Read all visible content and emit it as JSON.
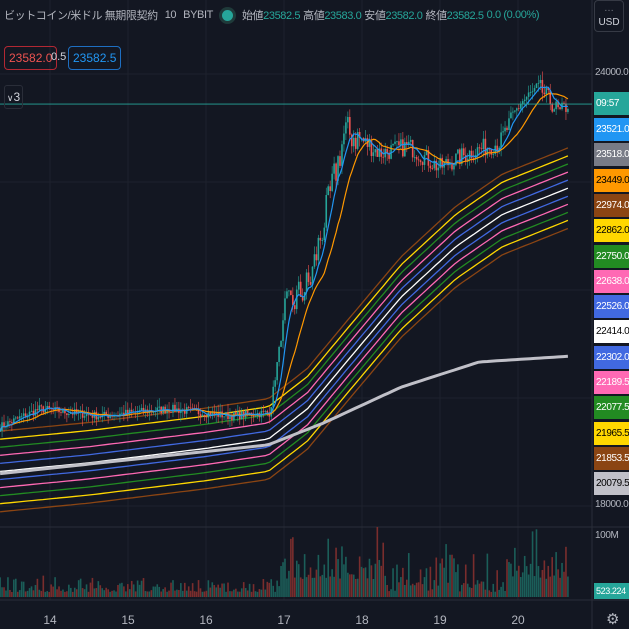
{
  "header": {
    "symbol": "ビットコイン/米ドル 無期限契約",
    "interval": "10",
    "exchange": "BYBIT",
    "ohlc": [
      {
        "k": "始値",
        "v": "23582.5"
      },
      {
        "k": "高値",
        "v": "23583.0"
      },
      {
        "k": "安値",
        "v": "23582.0"
      },
      {
        "k": "終値",
        "v": "23582.5"
      }
    ],
    "change": "0.0 (0.00%)"
  },
  "bid": "23582.0",
  "spread": "0.5",
  "ask": "23582.5",
  "indicators_toggle": "3",
  "currency": "USD",
  "axis": {
    "ticks": [
      "24000.0",
      "18000.0"
    ],
    "volume_tick": "100M",
    "volume_value": "523.224",
    "countdown": "09:57",
    "dates": [
      "14",
      "15",
      "16",
      "17",
      "18",
      "19",
      "20"
    ]
  },
  "price_labels": [
    {
      "v": "23521.0",
      "bg": "#2196f3",
      "fg": "#ffffff"
    },
    {
      "v": "23518.0",
      "bg": "#787b86",
      "fg": "#ffffff"
    },
    {
      "v": "23449.0",
      "bg": "#ff9800",
      "fg": "#000000"
    },
    {
      "v": "22974.0",
      "bg": "#8b4513",
      "fg": "#ffffff"
    },
    {
      "v": "22862.0",
      "bg": "#ffd700",
      "fg": "#000000"
    },
    {
      "v": "22750.0",
      "bg": "#228b22",
      "fg": "#ffffff"
    },
    {
      "v": "22638.0",
      "bg": "#ff69b4",
      "fg": "#ffffff"
    },
    {
      "v": "22526.0",
      "bg": "#4169e1",
      "fg": "#ffffff"
    },
    {
      "v": "22414.0",
      "bg": "#ffffff",
      "fg": "#000000"
    },
    {
      "v": "22302.0",
      "bg": "#4169e1",
      "fg": "#ffffff"
    },
    {
      "v": "22189.5",
      "bg": "#ff69b4",
      "fg": "#ffffff"
    },
    {
      "v": "22077.5",
      "bg": "#228b22",
      "fg": "#ffffff"
    },
    {
      "v": "21965.5",
      "bg": "#ffd700",
      "fg": "#000000"
    },
    {
      "v": "21853.5",
      "bg": "#8b4513",
      "fg": "#ffffff"
    },
    {
      "v": "20079.5",
      "bg": "#c0c0c8",
      "fg": "#000000"
    }
  ],
  "colors": {
    "up": "#26a69a",
    "down": "#ef5350",
    "bg": "#131722",
    "ribbon": [
      "#8b4513",
      "#ffd700",
      "#228b22",
      "#ff69b4",
      "#4169e1",
      "#ffffff",
      "#4169e1",
      "#ff69b4",
      "#228b22",
      "#ffd700",
      "#8b4513"
    ]
  },
  "chart_data": {
    "type": "line",
    "ylim": [
      18000,
      24000
    ],
    "x_ticks": [
      "14",
      "15",
      "16",
      "17",
      "18",
      "19",
      "20"
    ],
    "series": [
      {
        "role": "price",
        "points": [
          [
            13.36,
            19100
          ],
          [
            13.87,
            19350
          ],
          [
            14.64,
            19250
          ],
          [
            15.54,
            19350
          ],
          [
            16.31,
            19250
          ],
          [
            16.82,
            19300
          ],
          [
            17.01,
            20700
          ],
          [
            17.33,
            21100
          ],
          [
            17.59,
            22300
          ],
          [
            17.78,
            23200
          ],
          [
            17.97,
            23100
          ],
          [
            18.23,
            22900
          ],
          [
            18.6,
            23000
          ],
          [
            18.99,
            22700
          ],
          [
            19.36,
            22900
          ],
          [
            19.77,
            23050
          ],
          [
            20.03,
            23600
          ],
          [
            20.28,
            23800
          ],
          [
            20.54,
            23450
          ],
          [
            20.64,
            23582.5
          ]
        ]
      },
      {
        "role": "ribbon-center",
        "points": [
          [
            13.36,
            18480
          ],
          [
            14.5,
            18600
          ],
          [
            16,
            18800
          ],
          [
            16.8,
            18930
          ],
          [
            17.3,
            19350
          ],
          [
            17.8,
            20000
          ],
          [
            18.5,
            20900
          ],
          [
            19.2,
            21600
          ],
          [
            19.8,
            22050
          ],
          [
            20.64,
            22414
          ]
        ]
      },
      {
        "role": "slow-ma",
        "points": [
          [
            13.36,
            18450
          ],
          [
            16.8,
            18850
          ],
          [
            17.5,
            19150
          ],
          [
            18.5,
            19650
          ],
          [
            19.5,
            20000
          ],
          [
            20.64,
            20079.5
          ]
        ]
      }
    ]
  }
}
